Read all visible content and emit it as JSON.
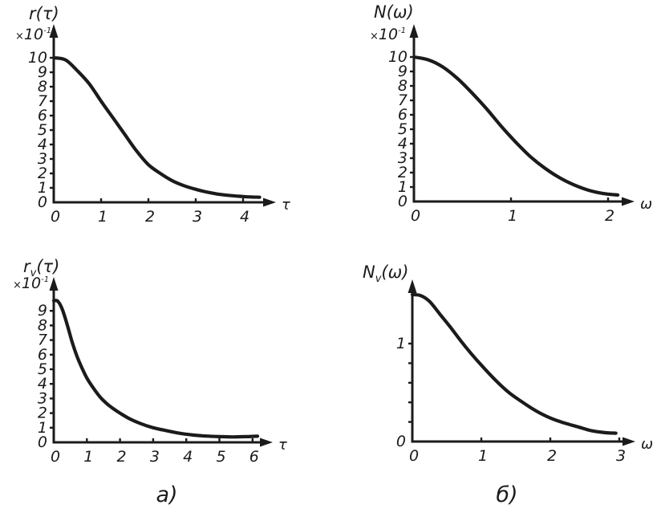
{
  "figure": {
    "background": "#ffffff",
    "ink": "#1b1b1b",
    "captions": [
      {
        "text": "а)"
      },
      {
        "text": "б)"
      }
    ]
  },
  "chart_data": [
    {
      "id": "r-tau",
      "type": "line",
      "title": {
        "main": "r",
        "sub": "",
        "arg": "(τ)"
      },
      "scale": {
        "times": "×",
        "mant": "10",
        "exp": "-1"
      },
      "xlabel": "τ",
      "xlim": [
        0,
        4.6
      ],
      "ylim": [
        0,
        11.5
      ],
      "grid": false,
      "x_ticks": [
        0,
        1,
        2,
        3,
        4
      ],
      "y_ticks": [
        {
          "v": 0,
          "label": "0"
        },
        {
          "v": 1,
          "label": "1"
        },
        {
          "v": 2,
          "label": "2"
        },
        {
          "v": 3,
          "label": "3"
        },
        {
          "v": 4,
          "label": "4"
        },
        {
          "v": 5,
          "label": "5"
        },
        {
          "v": 6,
          "label": "6"
        },
        {
          "v": 7,
          "label": "7"
        },
        {
          "v": 8,
          "label": "8"
        },
        {
          "v": 9,
          "label": "9"
        },
        {
          "v": 10,
          "label": "10"
        }
      ],
      "points": [
        [
          0,
          10
        ],
        [
          0.25,
          9.85
        ],
        [
          0.5,
          9.1
        ],
        [
          0.75,
          8.2
        ],
        [
          1,
          7.0
        ],
        [
          1.25,
          5.85
        ],
        [
          1.5,
          4.7
        ],
        [
          1.75,
          3.55
        ],
        [
          2,
          2.6
        ],
        [
          2.25,
          2.0
        ],
        [
          2.5,
          1.5
        ],
        [
          2.75,
          1.15
        ],
        [
          3,
          0.9
        ],
        [
          3.25,
          0.7
        ],
        [
          3.5,
          0.55
        ],
        [
          3.75,
          0.46
        ],
        [
          4,
          0.4
        ],
        [
          4.15,
          0.37
        ],
        [
          4.35,
          0.35
        ]
      ]
    },
    {
      "id": "N-omega",
      "type": "line",
      "title": {
        "main": "N",
        "sub": "",
        "arg": "(ω)"
      },
      "scale": {
        "times": "×",
        "mant": "10",
        "exp": "-1"
      },
      "xlabel": "ω",
      "xlim": [
        0,
        2.3
      ],
      "ylim": [
        0,
        11.5
      ],
      "grid": false,
      "x_ticks": [
        0,
        1,
        2
      ],
      "y_ticks": [
        {
          "v": 0,
          "label": "0"
        },
        {
          "v": 1,
          "label": "1"
        },
        {
          "v": 2,
          "label": "2"
        },
        {
          "v": 3,
          "label": "3"
        },
        {
          "v": 4,
          "label": "4"
        },
        {
          "v": 5,
          "label": "5"
        },
        {
          "v": 6,
          "label": "6"
        },
        {
          "v": 7,
          "label": "7"
        },
        {
          "v": 8,
          "label": "8"
        },
        {
          "v": 9,
          "label": "9"
        },
        {
          "v": 10,
          "label": "10"
        }
      ],
      "points": [
        [
          0,
          10
        ],
        [
          0.15,
          9.8
        ],
        [
          0.3,
          9.3
        ],
        [
          0.45,
          8.5
        ],
        [
          0.6,
          7.5
        ],
        [
          0.75,
          6.4
        ],
        [
          0.9,
          5.2
        ],
        [
          1.05,
          4.1
        ],
        [
          1.2,
          3.1
        ],
        [
          1.35,
          2.3
        ],
        [
          1.5,
          1.65
        ],
        [
          1.65,
          1.15
        ],
        [
          1.8,
          0.78
        ],
        [
          1.95,
          0.55
        ],
        [
          2.1,
          0.45
        ]
      ]
    },
    {
      "id": "rv-tau",
      "type": "line",
      "title": {
        "main": "r",
        "sub": "v",
        "arg": "(τ)"
      },
      "scale": {
        "times": "×",
        "mant": "10",
        "exp": "-1"
      },
      "xlabel": "τ",
      "xlim": [
        0,
        6.6
      ],
      "ylim": [
        0,
        11.3
      ],
      "grid": false,
      "x_ticks": [
        0,
        1,
        2,
        3,
        4,
        5,
        6
      ],
      "y_ticks": [
        {
          "v": 0,
          "label": "0"
        },
        {
          "v": 1,
          "label": "1"
        },
        {
          "v": 2,
          "label": "2"
        },
        {
          "v": 3,
          "label": "3"
        },
        {
          "v": 4,
          "label": "4"
        },
        {
          "v": 5,
          "label": "5"
        },
        {
          "v": 6,
          "label": "6"
        },
        {
          "v": 7,
          "label": "7"
        },
        {
          "v": 8,
          "label": "8"
        },
        {
          "v": 9,
          "label": "9"
        }
      ],
      "points": [
        [
          0,
          9.7
        ],
        [
          0.12,
          9.66
        ],
        [
          0.25,
          9.15
        ],
        [
          0.4,
          8.1
        ],
        [
          0.55,
          6.9
        ],
        [
          0.7,
          5.9
        ],
        [
          0.85,
          5.1
        ],
        [
          1,
          4.4
        ],
        [
          1.2,
          3.7
        ],
        [
          1.4,
          3.1
        ],
        [
          1.6,
          2.65
        ],
        [
          1.8,
          2.3
        ],
        [
          2,
          2.0
        ],
        [
          2.3,
          1.6
        ],
        [
          2.6,
          1.3
        ],
        [
          3,
          1.0
        ],
        [
          3.4,
          0.8
        ],
        [
          3.8,
          0.62
        ],
        [
          4.2,
          0.5
        ],
        [
          4.6,
          0.43
        ],
        [
          5,
          0.39
        ],
        [
          5.4,
          0.37
        ],
        [
          5.8,
          0.39
        ],
        [
          6.15,
          0.42
        ]
      ]
    },
    {
      "id": "Nv-omega",
      "type": "line",
      "title": {
        "main": "N",
        "sub": "v",
        "arg": "(ω)"
      },
      "scale": null,
      "xlabel": "ω",
      "xlim": [
        0,
        3.2
      ],
      "ylim": [
        0,
        1.65
      ],
      "grid": false,
      "x_ticks": [
        0,
        1,
        2,
        3
      ],
      "y_ticks": [
        {
          "v": 0,
          "label": "0"
        },
        {
          "v": 0.2
        },
        {
          "v": 0.4
        },
        {
          "v": 0.6
        },
        {
          "v": 0.8
        },
        {
          "v": 1,
          "label": "1"
        }
      ],
      "points": [
        [
          0,
          1.5
        ],
        [
          0.12,
          1.49
        ],
        [
          0.25,
          1.43
        ],
        [
          0.4,
          1.3
        ],
        [
          0.55,
          1.17
        ],
        [
          0.7,
          1.03
        ],
        [
          0.85,
          0.9
        ],
        [
          1,
          0.78
        ],
        [
          1.2,
          0.63
        ],
        [
          1.4,
          0.5
        ],
        [
          1.6,
          0.4
        ],
        [
          1.8,
          0.31
        ],
        [
          2,
          0.24
        ],
        [
          2.2,
          0.19
        ],
        [
          2.4,
          0.15
        ],
        [
          2.6,
          0.11
        ],
        [
          2.8,
          0.09
        ],
        [
          2.95,
          0.085
        ]
      ]
    }
  ]
}
